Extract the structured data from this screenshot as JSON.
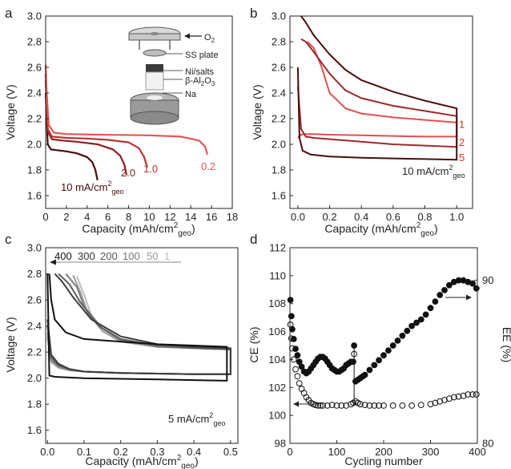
{
  "chart_data": [
    {
      "panel": "a",
      "type": "line",
      "xlabel": "Capacity (mAh/cm",
      "xlabel_sup": "2",
      "xlabel_sub": "geo",
      "xlabel_end": ")",
      "ylabel": "Voltage (V)",
      "xlim": [
        0,
        18
      ],
      "ylim": [
        1.5,
        3.0
      ],
      "xticks": [
        "0",
        "2",
        "4",
        "6",
        "8",
        "10",
        "12",
        "14",
        "16",
        "18"
      ],
      "yticks": [
        "1.6",
        "1.8",
        "2.0",
        "2.2",
        "2.4",
        "2.6",
        "2.8",
        "3.0"
      ],
      "inset_labels": [
        "O",
        "SS plate",
        "Ni/salts",
        "β-Al",
        "Na"
      ],
      "inset_o2_sub": "2",
      "inset_beta_sub1": "2",
      "inset_beta_mid": "O",
      "inset_beta_sub2": "3",
      "series": [
        {
          "label": "10 mA/cm",
          "label_sup": "2",
          "label_sub": "geo",
          "color": "#4a0d0d",
          "x": [
            0,
            0.2,
            0.5,
            1.0,
            2,
            3,
            4,
            4.5,
            4.8,
            5.0
          ],
          "y": [
            2.4,
            2.0,
            1.96,
            1.955,
            1.945,
            1.93,
            1.9,
            1.86,
            1.8,
            1.72
          ]
        },
        {
          "label": "2.0",
          "color": "#8b2020",
          "x": [
            0,
            0.2,
            0.6,
            1.5,
            3,
            5,
            6.5,
            7.2,
            7.6,
            7.8
          ],
          "y": [
            2.5,
            2.1,
            2.04,
            2.03,
            2.02,
            2.0,
            1.96,
            1.91,
            1.84,
            1.76
          ]
        },
        {
          "label": "1.0",
          "color": "#b83535",
          "x": [
            0,
            0.2,
            0.6,
            2,
            4,
            6,
            8,
            9.0,
            9.5,
            9.8
          ],
          "y": [
            2.55,
            2.12,
            2.06,
            2.05,
            2.045,
            2.035,
            2.015,
            1.97,
            1.9,
            1.82
          ]
        },
        {
          "label": "0.2",
          "color": "#e35555",
          "x": [
            0,
            0.1,
            0.3,
            0.8,
            2,
            5,
            10,
            13,
            14.8,
            15.4,
            15.6
          ],
          "y": [
            2.62,
            2.4,
            2.15,
            2.09,
            2.08,
            2.075,
            2.07,
            2.06,
            2.03,
            1.98,
            1.92
          ]
        }
      ]
    },
    {
      "panel": "b",
      "type": "line",
      "xlabel": "Capacity (mAh/cm",
      "xlabel_sup": "2",
      "xlabel_sub": "geo",
      "xlabel_end": ")",
      "ylabel": "Voltage (V)",
      "xlim": [
        -0.05,
        1.1
      ],
      "ylim": [
        1.5,
        3.0
      ],
      "xticks": [
        "0.0",
        "0.2",
        "0.4",
        "0.6",
        "0.8",
        "1.0"
      ],
      "xtick_values": [
        0,
        0.2,
        0.4,
        0.6,
        0.8,
        1.0
      ],
      "yticks": [
        "1.6",
        "1.8",
        "2.0",
        "2.2",
        "2.4",
        "2.6",
        "2.8",
        "3.0"
      ],
      "rate_label": "10 mA/cm",
      "rate_sup": "2",
      "rate_sub": "geo",
      "cycle_labels": [
        {
          "text": "1",
          "color": "#c0392b",
          "y": 2.16
        },
        {
          "text": "2",
          "color": "#c0392b",
          "y": 2.02
        },
        {
          "text": "5",
          "color": "#c0392b",
          "y": 1.9
        }
      ],
      "loops": [
        {
          "cycle": "1",
          "color": "#e05050",
          "charge": {
            "x": [
              0,
              0.02,
              0.05,
              0.1,
              0.2,
              0.4,
              0.6,
              0.8,
              1.0
            ],
            "y": [
              2.05,
              2.075,
              2.08,
              2.08,
              2.075,
              2.07,
              2.065,
              2.06,
              2.06
            ]
          },
          "discharge": {
            "x": [
              1.0,
              0.8,
              0.6,
              0.4,
              0.3,
              0.2,
              0.15,
              0.1,
              0.06
            ],
            "y": [
              2.17,
              2.19,
              2.21,
              2.24,
              2.28,
              2.4,
              2.6,
              2.75,
              2.8
            ]
          }
        },
        {
          "cycle": "2",
          "color": "#9c2a2a",
          "charge": {
            "x": [
              0,
              0.02,
              0.05,
              0.1,
              0.2,
              0.4,
              0.6,
              0.8,
              1.0
            ],
            "y": [
              2.45,
              2.12,
              2.06,
              2.05,
              2.04,
              2.02,
              2.0,
              1.99,
              1.98
            ]
          },
          "discharge": {
            "x": [
              1.0,
              0.8,
              0.6,
              0.4,
              0.3,
              0.2,
              0.1,
              0.05,
              0.02
            ],
            "y": [
              2.22,
              2.26,
              2.3,
              2.36,
              2.42,
              2.55,
              2.72,
              2.8,
              2.82
            ]
          }
        },
        {
          "cycle": "5",
          "color": "#4a0d0d",
          "charge": {
            "x": [
              0,
              0.01,
              0.03,
              0.08,
              0.2,
              0.4,
              0.6,
              0.8,
              1.0
            ],
            "y": [
              2.6,
              2.05,
              1.95,
              1.92,
              1.905,
              1.895,
              1.89,
              1.885,
              1.88
            ]
          },
          "discharge": {
            "x": [
              1.0,
              0.8,
              0.6,
              0.4,
              0.3,
              0.2,
              0.1,
              0.05,
              0.02
            ],
            "y": [
              2.28,
              2.34,
              2.41,
              2.5,
              2.58,
              2.7,
              2.85,
              2.95,
              3.0
            ]
          }
        }
      ]
    },
    {
      "panel": "c",
      "type": "line",
      "xlabel": "Capacity (mAh/cm",
      "xlabel_sup": "2",
      "xlabel_sub": "geo",
      "xlabel_end": ")",
      "ylabel": "Voltage (V)",
      "xlim": [
        -0.005,
        0.52
      ],
      "ylim": [
        1.5,
        3.0
      ],
      "xticks": [
        "0.0",
        "0.1",
        "0.2",
        "0.3",
        "0.4",
        "0.5"
      ],
      "xtick_values": [
        0,
        0.1,
        0.2,
        0.3,
        0.4,
        0.5
      ],
      "yticks": [
        "1.6",
        "1.8",
        "2.0",
        "2.2",
        "2.4",
        "2.6",
        "2.8",
        "3.0"
      ],
      "rate_label": "5 mA/cm",
      "rate_sup": "2",
      "rate_sub": "geo",
      "cycle_labels": [
        {
          "text": "400",
          "color": "#111111"
        },
        {
          "text": "300",
          "color": "#333333"
        },
        {
          "text": "200",
          "color": "#555555"
        },
        {
          "text": "100",
          "color": "#777777"
        },
        {
          "text": "50",
          "color": "#999999"
        },
        {
          "text": "1",
          "color": "#bbbbbb"
        }
      ],
      "loops": [
        {
          "cycle": "1",
          "color": "#bdbdbd",
          "charge": {
            "x": [
              0,
              0.01,
              0.03,
              0.06,
              0.1,
              0.2,
              0.3,
              0.4,
              0.5
            ],
            "y": [
              2.3,
              2.12,
              2.08,
              2.06,
              2.05,
              2.04,
              2.035,
              2.03,
              2.03
            ]
          },
          "discharge": {
            "x": [
              0.5,
              0.4,
              0.3,
              0.2,
              0.15,
              0.12,
              0.1,
              0.08
            ],
            "y": [
              2.22,
              2.23,
              2.24,
              2.28,
              2.36,
              2.48,
              2.64,
              2.78
            ]
          }
        },
        {
          "cycle": "50",
          "color": "#a0a0a0",
          "charge": {
            "x": [
              0,
              0.01,
              0.03,
              0.06,
              0.1,
              0.2,
              0.3,
              0.4,
              0.5
            ],
            "y": [
              2.32,
              2.13,
              2.08,
              2.06,
              2.05,
              2.04,
              2.035,
              2.03,
              2.03
            ]
          },
          "discharge": {
            "x": [
              0.5,
              0.4,
              0.3,
              0.2,
              0.15,
              0.11,
              0.09,
              0.07
            ],
            "y": [
              2.22,
              2.23,
              2.24,
              2.28,
              2.36,
              2.5,
              2.66,
              2.79
            ]
          }
        },
        {
          "cycle": "100",
          "color": "#808080",
          "charge": {
            "x": [
              0,
              0.01,
              0.03,
              0.06,
              0.1,
              0.2,
              0.3,
              0.4,
              0.5
            ],
            "y": [
              2.35,
              2.14,
              2.09,
              2.06,
              2.05,
              2.04,
              2.035,
              2.03,
              2.03
            ]
          },
          "discharge": {
            "x": [
              0.5,
              0.4,
              0.3,
              0.2,
              0.15,
              0.1,
              0.08,
              0.05
            ],
            "y": [
              2.22,
              2.23,
              2.24,
              2.29,
              2.38,
              2.55,
              2.7,
              2.8
            ]
          }
        },
        {
          "cycle": "200",
          "color": "#5f5f5f",
          "charge": {
            "x": [
              0,
              0.01,
              0.03,
              0.06,
              0.1,
              0.2,
              0.3,
              0.4,
              0.5
            ],
            "y": [
              2.4,
              2.16,
              2.1,
              2.07,
              2.05,
              2.04,
              2.035,
              2.03,
              2.03
            ]
          },
          "discharge": {
            "x": [
              0.5,
              0.4,
              0.3,
              0.2,
              0.14,
              0.09,
              0.06,
              0.03
            ],
            "y": [
              2.22,
              2.23,
              2.25,
              2.3,
              2.4,
              2.58,
              2.72,
              2.8
            ]
          }
        },
        {
          "cycle": "300",
          "color": "#3c3c3c",
          "charge": {
            "x": [
              0,
              0.01,
              0.03,
              0.06,
              0.1,
              0.2,
              0.3,
              0.4,
              0.5
            ],
            "y": [
              2.45,
              2.18,
              2.11,
              2.07,
              2.05,
              2.04,
              2.035,
              2.03,
              2.03
            ]
          },
          "discharge": {
            "x": [
              0.5,
              0.4,
              0.3,
              0.2,
              0.12,
              0.07,
              0.04,
              0.02
            ],
            "y": [
              2.23,
              2.24,
              2.26,
              2.32,
              2.45,
              2.62,
              2.74,
              2.8
            ]
          }
        },
        {
          "cycle": "400",
          "color": "#111111",
          "charge": {
            "x": [
              0,
              0.005,
              0.02,
              0.06,
              0.1,
              0.2,
              0.3,
              0.4,
              0.49,
              0.49
            ],
            "y": [
              2.8,
              2.02,
              2.01,
              2.005,
              2.0,
              1.995,
              1.99,
              1.985,
              1.98,
              2.24
            ]
          },
          "discharge": {
            "x": [
              0.49,
              0.4,
              0.3,
              0.2,
              0.1,
              0.05,
              0.02,
              0.01,
              0.005
            ],
            "y": [
              2.24,
              2.25,
              2.26,
              2.28,
              2.3,
              2.35,
              2.45,
              2.6,
              2.8
            ]
          }
        }
      ]
    },
    {
      "panel": "d",
      "type": "scatter",
      "xlabel": "Cycling number",
      "ylabel": "CE (%)",
      "y2label": "EE (%)",
      "xlim": [
        0,
        400
      ],
      "ylim": [
        98,
        112
      ],
      "y2lim": [
        80,
        92
      ],
      "xticks": [
        "0",
        "100",
        "200",
        "300",
        "400"
      ],
      "xtick_values": [
        0,
        100,
        200,
        300,
        400
      ],
      "yticks": [
        "98",
        "100",
        "102",
        "104",
        "106",
        "108",
        "110",
        "112"
      ],
      "ytick_values": [
        98,
        100,
        102,
        104,
        106,
        108,
        110,
        112
      ],
      "y2ticks": [
        "80",
        "90"
      ],
      "y2tick_values": [
        80,
        90
      ],
      "series": [
        {
          "name": "EE",
          "axis": "right",
          "marker": "filled",
          "x": [
            1,
            3,
            5,
            8,
            12,
            16,
            20,
            25,
            30,
            35,
            40,
            45,
            50,
            55,
            60,
            65,
            70,
            75,
            80,
            85,
            90,
            95,
            100,
            105,
            110,
            115,
            120,
            125,
            130,
            135,
            137,
            140,
            145,
            150,
            155,
            160,
            170,
            180,
            190,
            200,
            210,
            220,
            230,
            240,
            250,
            260,
            270,
            280,
            290,
            300,
            310,
            320,
            330,
            340,
            350,
            360,
            370,
            380,
            390,
            398
          ],
          "y": [
            88.8,
            87.8,
            87.0,
            86.4,
            85.8,
            85.4,
            85.0,
            84.7,
            84.4,
            84.3,
            84.4,
            84.6,
            84.8,
            85.0,
            85.2,
            85.3,
            85.3,
            85.2,
            85.0,
            84.8,
            84.6,
            84.5,
            84.4,
            84.4,
            84.5,
            84.6,
            84.8,
            84.9,
            85.0,
            85.0,
            86.0,
            83.8,
            83.9,
            84.0,
            84.1,
            84.2,
            84.5,
            84.8,
            85.1,
            85.4,
            85.7,
            86.0,
            86.3,
            86.6,
            86.9,
            87.2,
            87.4,
            87.6,
            87.9,
            88.3,
            88.7,
            89.1,
            89.4,
            89.7,
            89.9,
            90.0,
            90.0,
            89.9,
            89.8,
            89.5
          ]
        },
        {
          "name": "CE",
          "axis": "left",
          "marker": "open",
          "x": [
            1,
            3,
            5,
            8,
            12,
            16,
            20,
            25,
            30,
            35,
            40,
            45,
            50,
            55,
            60,
            65,
            70,
            80,
            90,
            100,
            110,
            120,
            130,
            135,
            137,
            140,
            145,
            150,
            160,
            170,
            180,
            190,
            200,
            220,
            240,
            260,
            280,
            300,
            310,
            320,
            330,
            340,
            350,
            360,
            370,
            380,
            390,
            398
          ],
          "y": [
            106.5,
            105.5,
            104.8,
            104.0,
            103.3,
            102.8,
            102.3,
            101.9,
            101.6,
            101.3,
            101.1,
            100.9,
            100.8,
            100.75,
            100.7,
            100.7,
            100.7,
            100.7,
            100.75,
            100.7,
            100.7,
            100.7,
            100.8,
            100.9,
            104.4,
            101.0,
            100.9,
            100.8,
            100.75,
            100.7,
            100.7,
            100.7,
            100.7,
            100.7,
            100.7,
            100.7,
            100.75,
            100.8,
            100.9,
            101.0,
            101.1,
            101.2,
            101.3,
            101.35,
            101.4,
            101.5,
            101.5,
            101.5
          ]
        }
      ]
    }
  ],
  "panel_letters": {
    "a": "a",
    "b": "b",
    "c": "c",
    "d": "d"
  },
  "colors": {
    "ink": "#222222"
  }
}
